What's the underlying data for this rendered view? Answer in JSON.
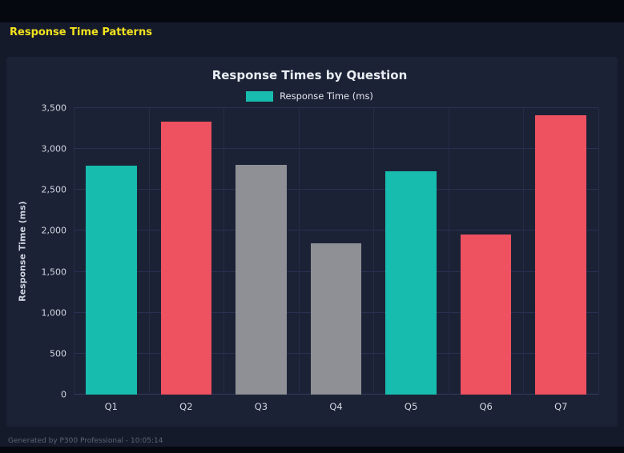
{
  "page": {
    "title": "Response Time Patterns",
    "footer": "Generated by P300 Professional - 10:05:14"
  },
  "chart_data": {
    "type": "bar",
    "title": "Response Times by Question",
    "legend_label": "Response Time (ms)",
    "ylabel": "Response Time (ms)",
    "xlabel": "",
    "categories": [
      "Q1",
      "Q2",
      "Q3",
      "Q4",
      "Q5",
      "Q6",
      "Q7"
    ],
    "values": [
      2800,
      3330,
      2810,
      1850,
      2730,
      1960,
      3410
    ],
    "bar_colors": [
      "teal",
      "red",
      "gray",
      "gray",
      "teal",
      "red",
      "red"
    ],
    "colors": {
      "teal": "#17bcae",
      "red": "#ee5160",
      "gray": "#8e9095"
    },
    "ylim": [
      0,
      3500
    ],
    "yticks": [
      0,
      500,
      1000,
      1500,
      2000,
      2500,
      3000,
      3500
    ],
    "ytick_labels": [
      "0",
      "500",
      "1,000",
      "1,500",
      "2,000",
      "2,500",
      "3,000",
      "3,500"
    ],
    "grid": true,
    "legend_position": "top"
  }
}
